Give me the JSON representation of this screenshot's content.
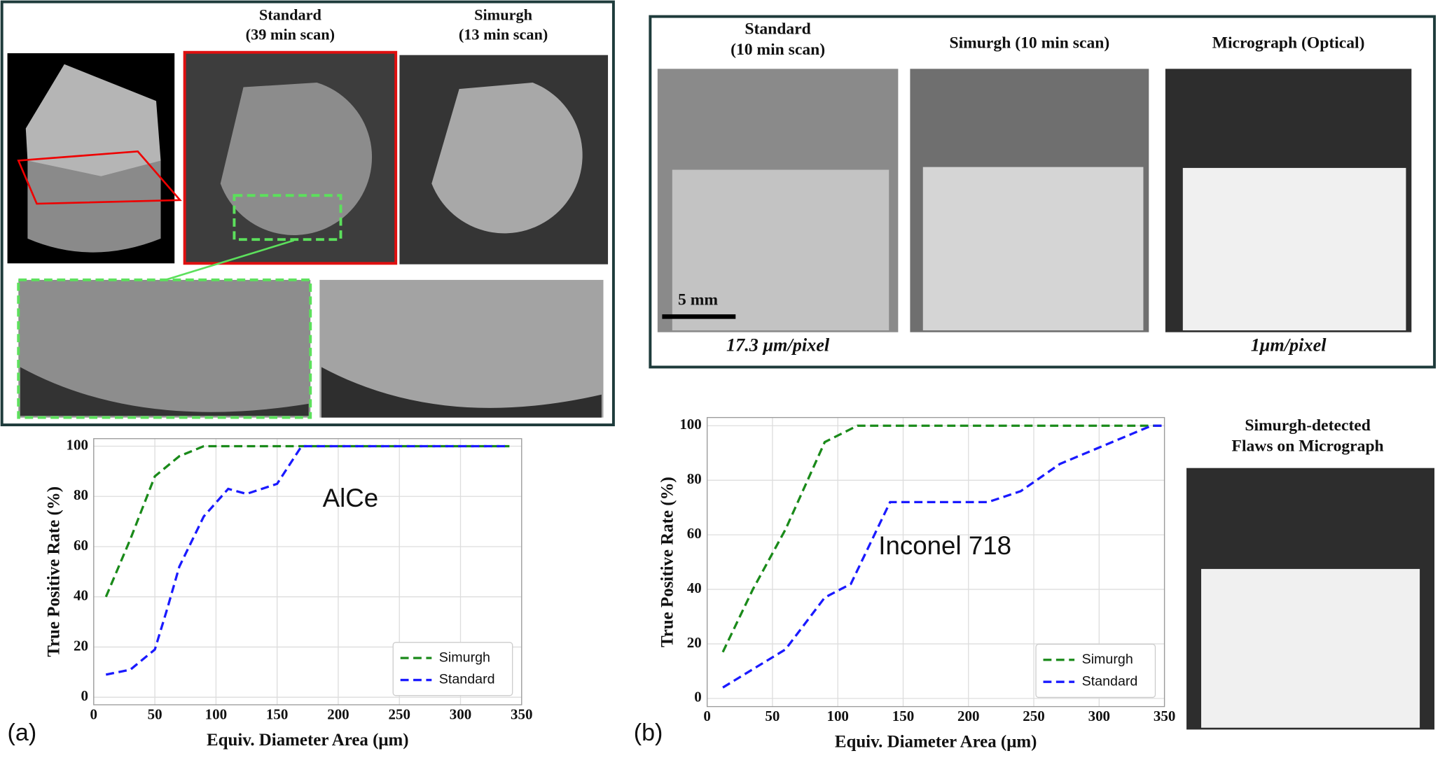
{
  "panels": {
    "a": {
      "label": "(a)",
      "images": [
        {
          "title": [
            "Standard",
            "(39 min scan)"
          ]
        },
        {
          "title": [
            "Simurgh",
            "(13 min scan)"
          ]
        }
      ]
    },
    "b": {
      "label": "(b)",
      "images": [
        {
          "title": [
            "Standard",
            "(10 min scan)"
          ],
          "caption": "17.3 μm/pixel",
          "scale_bar": "5 mm"
        },
        {
          "title": [
            "Simurgh (10 min scan)"
          ]
        },
        {
          "title": [
            "Micrograph (Optical)"
          ],
          "caption": "1μm/pixel"
        }
      ],
      "overlay_title": [
        "Simurgh-detected",
        "Flaws on Micrograph"
      ]
    }
  },
  "chart_data": [
    {
      "type": "line",
      "annotation": "AlCe",
      "x_label": "Equiv. Diameter Area (μm)",
      "y_label": "True Positive Rate (%)",
      "xlim": [
        0,
        350
      ],
      "ylim": [
        -3,
        103
      ],
      "xticks": [
        0,
        50,
        100,
        150,
        200,
        250,
        300,
        350
      ],
      "yticks": [
        0,
        20,
        40,
        60,
        80,
        100
      ],
      "grid": true,
      "legend": "lower right",
      "series": [
        {
          "name": "Simurgh",
          "color": "#1a8a1a",
          "x": [
            10,
            30,
            50,
            70,
            90,
            340
          ],
          "values": [
            40,
            63,
            88,
            96,
            100,
            100
          ]
        },
        {
          "name": "Standard",
          "color": "#1a1aff",
          "x": [
            10,
            30,
            50,
            60,
            70,
            90,
            110,
            125,
            150,
            170,
            340
          ],
          "values": [
            9,
            11,
            19,
            35,
            52,
            72,
            83,
            81,
            85,
            100,
            100
          ]
        }
      ]
    },
    {
      "type": "line",
      "annotation": "Inconel 718",
      "x_label": "Equiv. Diameter Area (μm)",
      "y_label": "True Positive Rate (%)",
      "xlim": [
        0,
        350
      ],
      "ylim": [
        -3,
        103
      ],
      "xticks": [
        0,
        50,
        100,
        150,
        200,
        250,
        300,
        350
      ],
      "yticks": [
        0,
        20,
        40,
        60,
        80,
        100
      ],
      "grid": true,
      "legend": "lower right",
      "series": [
        {
          "name": "Simurgh",
          "color": "#1a8a1a",
          "x": [
            12,
            35,
            60,
            90,
            115,
            350
          ],
          "values": [
            17,
            40,
            62,
            94,
            100,
            100
          ]
        },
        {
          "name": "Standard",
          "color": "#1a1aff",
          "x": [
            12,
            60,
            90,
            110,
            140,
            215,
            240,
            270,
            300,
            340,
            350
          ],
          "values": [
            4,
            18,
            37,
            42,
            72,
            72,
            76,
            86,
            92,
            100,
            100
          ]
        }
      ]
    }
  ]
}
